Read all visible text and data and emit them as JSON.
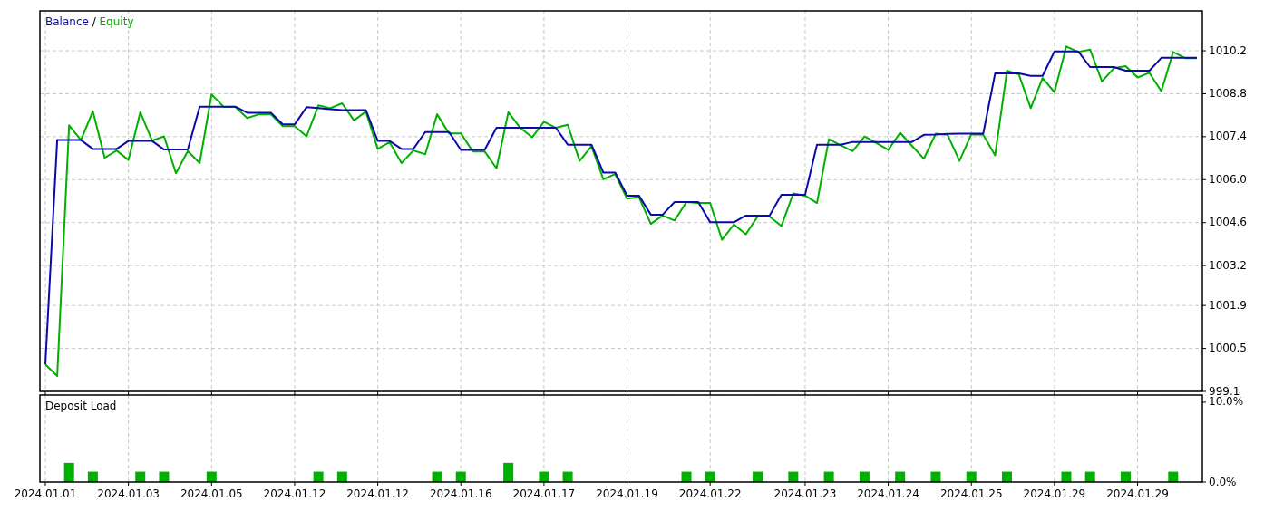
{
  "chart_data": [
    {
      "type": "line",
      "ylim": [
        999.1,
        1011.5
      ],
      "categories": [
        "2024.01.01",
        null,
        null,
        null,
        null,
        null,
        null,
        "2024.01.03",
        null,
        null,
        null,
        null,
        null,
        null,
        "2024.01.05",
        null,
        null,
        null,
        null,
        null,
        null,
        "2024.01.12",
        null,
        null,
        null,
        null,
        null,
        null,
        "2024.01.12",
        null,
        null,
        null,
        null,
        null,
        null,
        "2024.01.16",
        null,
        null,
        null,
        null,
        null,
        null,
        "2024.01.17",
        null,
        null,
        null,
        null,
        null,
        null,
        "2024.01.19",
        null,
        null,
        null,
        null,
        null,
        null,
        "2024.01.22",
        null,
        null,
        null,
        null,
        null,
        null,
        null,
        "2024.01.23",
        null,
        null,
        null,
        null,
        null,
        null,
        "2024.01.24",
        null,
        null,
        null,
        null,
        null,
        null,
        "2024.01.25",
        null,
        null,
        null,
        null,
        null,
        null,
        "2024.01.29",
        null,
        null,
        null,
        null,
        null,
        null,
        "2024.01.29",
        null,
        null,
        null,
        null,
        null
      ],
      "yticks": [
        999.1,
        1000.5,
        1001.9,
        1003.2,
        1004.6,
        {
          "value": 1006,
          "label": "1006.0"
        },
        1007.4,
        1008.8,
        1010.2
      ],
      "grid": true,
      "legend": "top left",
      "tick_labels": "y",
      "annotations": [
        "/"
      ],
      "series": [
        {
          "name": "Balance",
          "color": "#0a0aa8",
          "values": [
            999.98,
            1007.29,
            1007.29,
            1007.29,
            1007.0,
            1007.0,
            1007.0,
            1007.26,
            1007.26,
            1007.26,
            1006.98,
            1006.98,
            1006.98,
            1008.38,
            1008.38,
            1008.38,
            1008.38,
            1008.18,
            1008.18,
            1008.18,
            1007.8,
            1007.8,
            1008.36,
            1008.33,
            1008.3,
            1008.27,
            1008.27,
            1008.27,
            1007.26,
            1007.26,
            1007.0,
            1007.0,
            1007.55,
            1007.55,
            1007.55,
            1006.97,
            1006.97,
            1006.97,
            1007.69,
            1007.69,
            1007.69,
            1007.69,
            1007.69,
            1007.69,
            1007.14,
            1007.14,
            1007.14,
            1006.23,
            1006.23,
            1005.48,
            1005.48,
            1004.86,
            1004.86,
            1005.27,
            1005.27,
            1005.27,
            1004.61,
            1004.61,
            1004.61,
            1004.83,
            1004.83,
            1004.83,
            1005.51,
            1005.51,
            1005.51,
            1007.14,
            1007.14,
            1007.14,
            1007.23,
            1007.23,
            1007.23,
            1007.23,
            1007.23,
            1007.23,
            1007.46,
            1007.47,
            1007.49,
            1007.5,
            1007.5,
            1007.5,
            1009.46,
            1009.46,
            1009.46,
            1009.38,
            1009.38,
            1010.18,
            1010.18,
            1010.18,
            1009.67,
            1009.67,
            1009.67,
            1009.55,
            1009.55,
            1009.55,
            1009.97,
            1009.97,
            1009.97,
            1009.97
          ]
        },
        {
          "name": "Equity",
          "color": "#00b000",
          "values": [
            999.98,
            999.6,
            1007.77,
            1007.29,
            1008.23,
            1006.71,
            1006.95,
            1006.64,
            1008.2,
            1007.27,
            1007.41,
            1006.21,
            1006.93,
            1006.54,
            1008.78,
            1008.38,
            1008.37,
            1008.01,
            1008.13,
            1008.13,
            1007.74,
            1007.74,
            1007.41,
            1008.42,
            1008.33,
            1008.49,
            1007.93,
            1008.22,
            1007.0,
            1007.22,
            1006.54,
            1006.95,
            1006.83,
            1008.13,
            1007.51,
            1007.51,
            1006.92,
            1006.92,
            1006.37,
            1008.2,
            1007.69,
            1007.38,
            1007.89,
            1007.69,
            1007.79,
            1006.61,
            1007.09,
            1006.01,
            1006.18,
            1005.38,
            1005.43,
            1004.56,
            1004.83,
            1004.67,
            1005.27,
            1005.24,
            1005.24,
            1004.04,
            1004.54,
            1004.22,
            1004.8,
            1004.8,
            1004.49,
            1005.55,
            1005.48,
            1005.24,
            1007.32,
            1007.12,
            1006.93,
            1007.41,
            1007.19,
            1006.97,
            1007.53,
            1007.1,
            1006.68,
            1007.5,
            1007.46,
            1006.61,
            1007.48,
            1007.46,
            1006.79,
            1009.55,
            1009.43,
            1008.33,
            1009.31,
            1008.85,
            1010.34,
            1010.16,
            1010.24,
            1009.2,
            1009.63,
            1009.7,
            1009.33,
            1009.48,
            1008.88,
            1010.16,
            1009.96,
            1009.96
          ]
        }
      ]
    },
    {
      "type": "bar",
      "title": "Deposit Load",
      "ylim": [
        0,
        10.9
      ],
      "categories": [
        "2024.01.01",
        null,
        null,
        null,
        null,
        null,
        null,
        "2024.01.03",
        null,
        null,
        null,
        null,
        null,
        null,
        "2024.01.05",
        null,
        null,
        null,
        null,
        null,
        null,
        "2024.01.12",
        null,
        null,
        null,
        null,
        null,
        null,
        "2024.01.12",
        null,
        null,
        null,
        null,
        null,
        null,
        "2024.01.16",
        null,
        null,
        null,
        null,
        null,
        null,
        "2024.01.17",
        null,
        null,
        null,
        null,
        null,
        null,
        "2024.01.19",
        null,
        null,
        null,
        null,
        null,
        null,
        "2024.01.22",
        null,
        null,
        null,
        null,
        null,
        null,
        null,
        "2024.01.23",
        null,
        null,
        null,
        null,
        null,
        null,
        "2024.01.24",
        null,
        null,
        null,
        null,
        null,
        null,
        "2024.01.25",
        null,
        null,
        null,
        null,
        null,
        null,
        "2024.01.29",
        null,
        null,
        null,
        null,
        null,
        null,
        "2024.01.29",
        null,
        null,
        null,
        null,
        null
      ],
      "yticks": [
        {
          "value": 0,
          "label": "0.0%"
        },
        {
          "value": 10,
          "label": "10.0%"
        }
      ],
      "grid": "x",
      "color": "#00b000",
      "values": [
        null,
        null,
        2.4,
        null,
        1.3,
        null,
        null,
        null,
        1.3,
        null,
        1.3,
        null,
        null,
        null,
        1.3,
        null,
        null,
        null,
        null,
        null,
        null,
        null,
        null,
        1.3,
        null,
        1.3,
        null,
        null,
        null,
        null,
        null,
        null,
        null,
        1.3,
        null,
        1.3,
        null,
        null,
        null,
        2.4,
        null,
        null,
        1.3,
        null,
        1.3,
        null,
        null,
        null,
        null,
        null,
        null,
        null,
        null,
        null,
        1.3,
        null,
        1.3,
        null,
        null,
        null,
        1.3,
        null,
        null,
        1.3,
        null,
        null,
        1.3,
        null,
        null,
        1.3,
        null,
        null,
        1.3,
        null,
        null,
        1.3,
        null,
        null,
        1.3,
        null,
        null,
        1.3,
        null,
        null,
        null,
        null,
        1.3,
        null,
        1.3,
        null,
        null,
        1.3,
        null,
        null,
        null,
        1.3,
        null,
        null
      ]
    }
  ]
}
